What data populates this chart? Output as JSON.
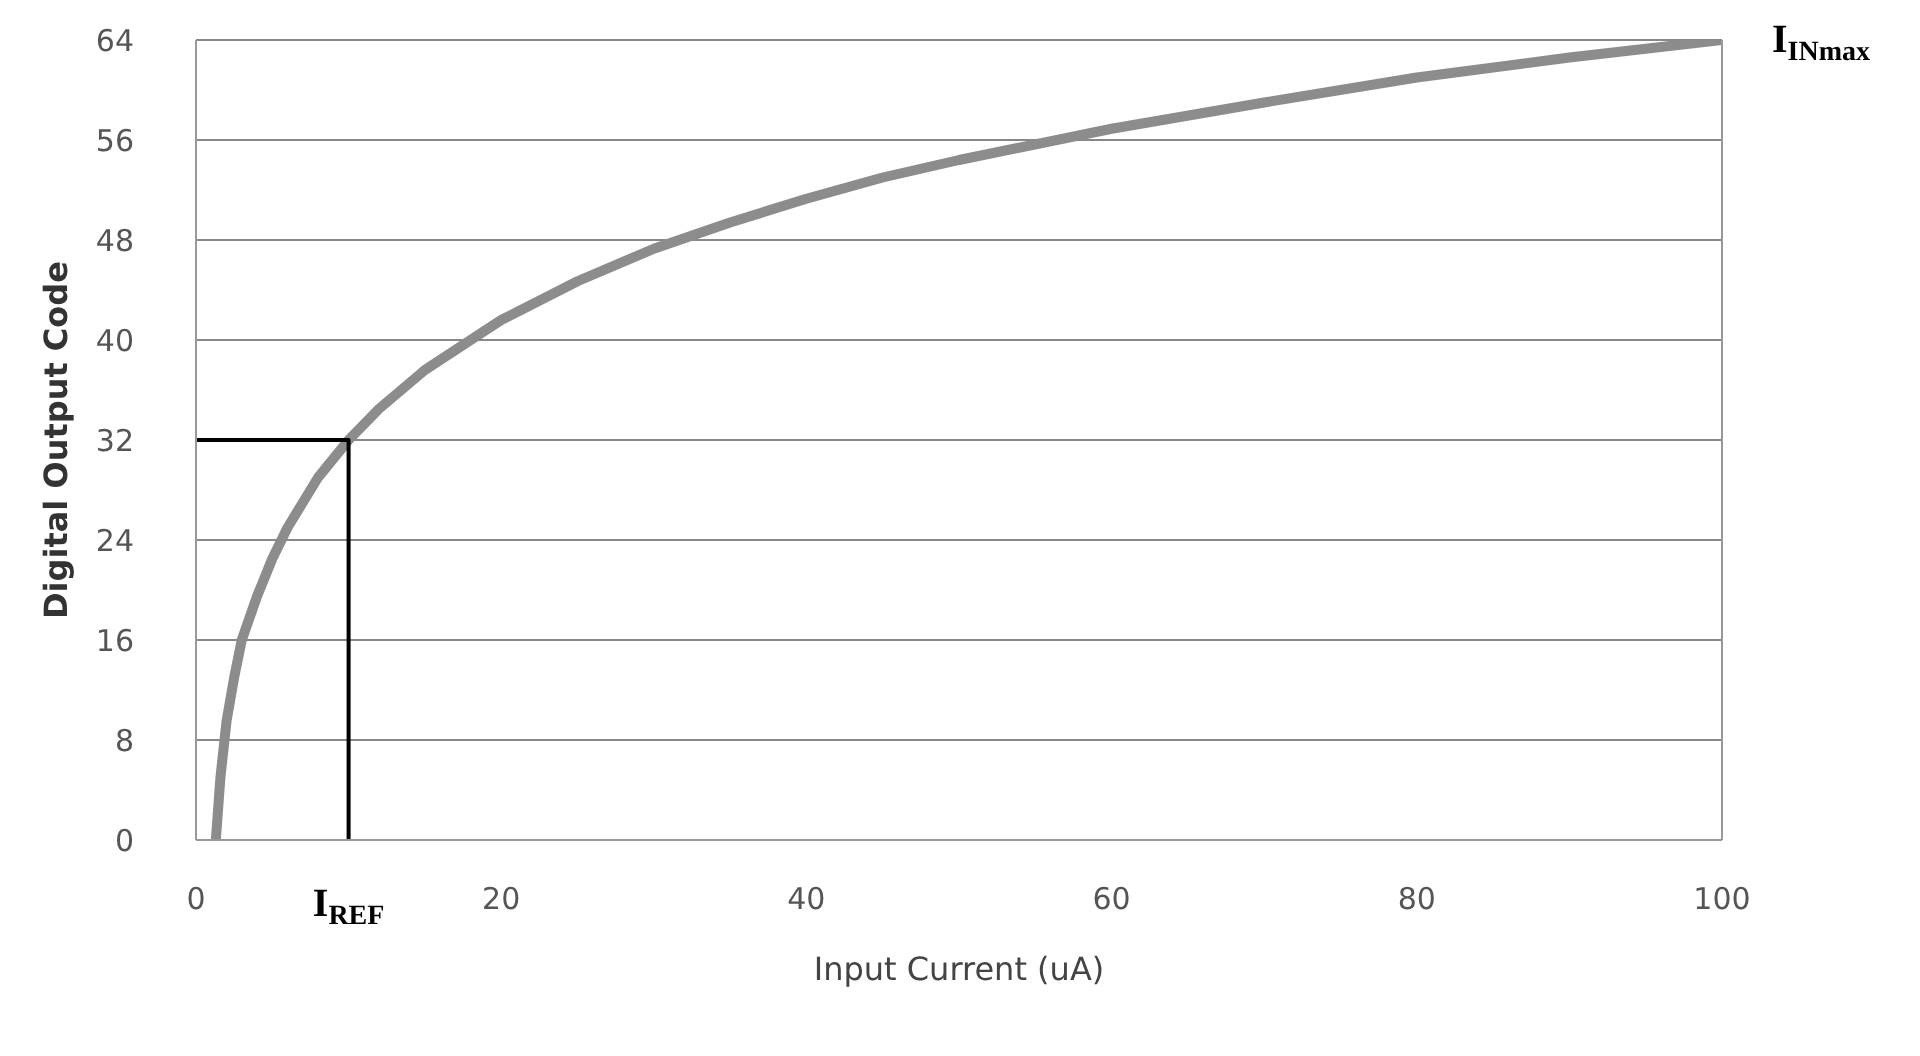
{
  "chart_data": {
    "type": "line",
    "xlabel": "Input  Current (uA)",
    "ylabel": "Digital Output Code",
    "xlim": [
      0,
      100
    ],
    "xticks": [
      0,
      20,
      40,
      60,
      80,
      100
    ],
    "ylim": [
      0,
      64
    ],
    "yticks": [
      0,
      8,
      16,
      24,
      32,
      40,
      48,
      56,
      64
    ],
    "grid": "y",
    "marker": "none",
    "series": [
      {
        "color": "#8c8c8c",
        "x": [
          1.3,
          1.6,
          2,
          2.5,
          3,
          4,
          5,
          6,
          7,
          8,
          9,
          10,
          12,
          15,
          18,
          20,
          25,
          30,
          35,
          40,
          45,
          50,
          60,
          70,
          80,
          90,
          100
        ],
        "values": [
          0,
          5,
          9.5,
          13,
          16,
          19.5,
          22.5,
          25,
          27,
          29,
          30.5,
          32,
          34.5,
          37.6,
          40,
          41.6,
          44.7,
          47.3,
          49.4,
          51.3,
          53,
          54.4,
          56.9,
          59,
          61,
          62.6,
          64
        ]
      },
      {
        "color": "#000000",
        "x": [
          0,
          10,
          10
        ],
        "values": [
          32,
          32,
          0
        ]
      }
    ],
    "annotations": [
      {
        "text": "I$_{REF}$",
        "x": 10,
        "y": 0
      },
      {
        "text": "I$_{INmax}$",
        "x": 100,
        "y": 64
      }
    ]
  }
}
